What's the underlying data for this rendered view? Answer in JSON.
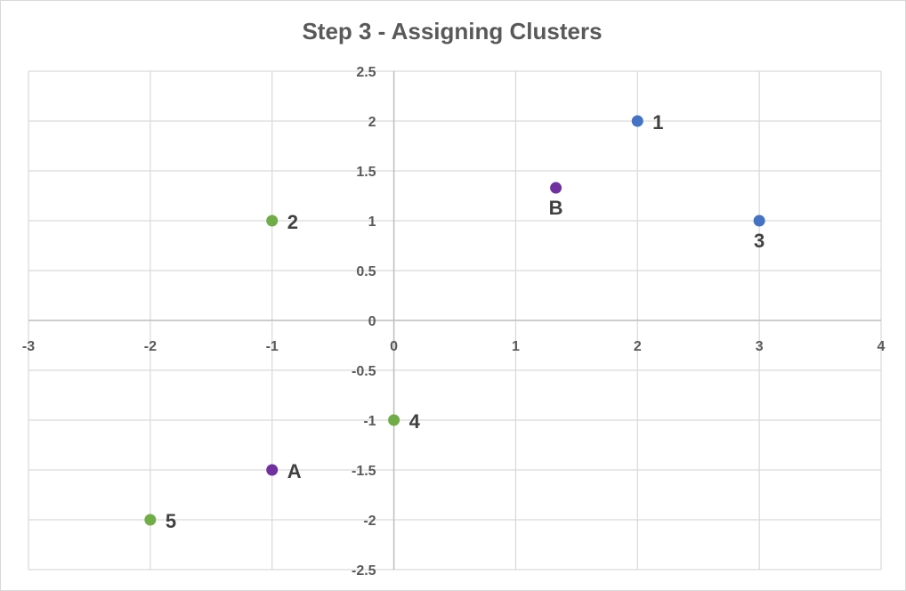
{
  "chart_data": {
    "type": "scatter",
    "title": "Step 3 - Assigning Clusters",
    "xlabel": "",
    "ylabel": "",
    "xlim": [
      -3,
      4
    ],
    "ylim": [
      -2.5,
      2.5
    ],
    "x_ticks": [
      "-3",
      "-2",
      "-1",
      "0",
      "1",
      "2",
      "3",
      "4"
    ],
    "y_ticks": [
      "2.5",
      "2",
      "1.5",
      "1",
      "0.5",
      "0",
      "-0.5",
      "-1",
      "-1.5",
      "-2",
      "-2.5"
    ],
    "grid": true,
    "legend": "none",
    "colors": {
      "blue": "#4472c4",
      "green": "#70ad47",
      "purple": "#7030a0",
      "grid": "#d9d9d9",
      "axis": "#bfbfbf"
    },
    "series": [
      {
        "color": "#4472c4",
        "points": [
          {
            "x": 2,
            "y": 2,
            "label": "1",
            "label_pos": "right"
          },
          {
            "x": 3,
            "y": 1,
            "label": "3",
            "label_pos": "below"
          }
        ]
      },
      {
        "color": "#70ad47",
        "points": [
          {
            "x": -1,
            "y": 1,
            "label": "2",
            "label_pos": "right"
          },
          {
            "x": 0,
            "y": -1,
            "label": "4",
            "label_pos": "right"
          },
          {
            "x": -2,
            "y": -2,
            "label": "5",
            "label_pos": "right"
          }
        ]
      },
      {
        "color": "#7030a0",
        "points": [
          {
            "x": -1,
            "y": -1.5,
            "label": "A",
            "label_pos": "right"
          },
          {
            "x": 1.33,
            "y": 1.33,
            "label": "B",
            "label_pos": "below"
          }
        ]
      }
    ]
  }
}
